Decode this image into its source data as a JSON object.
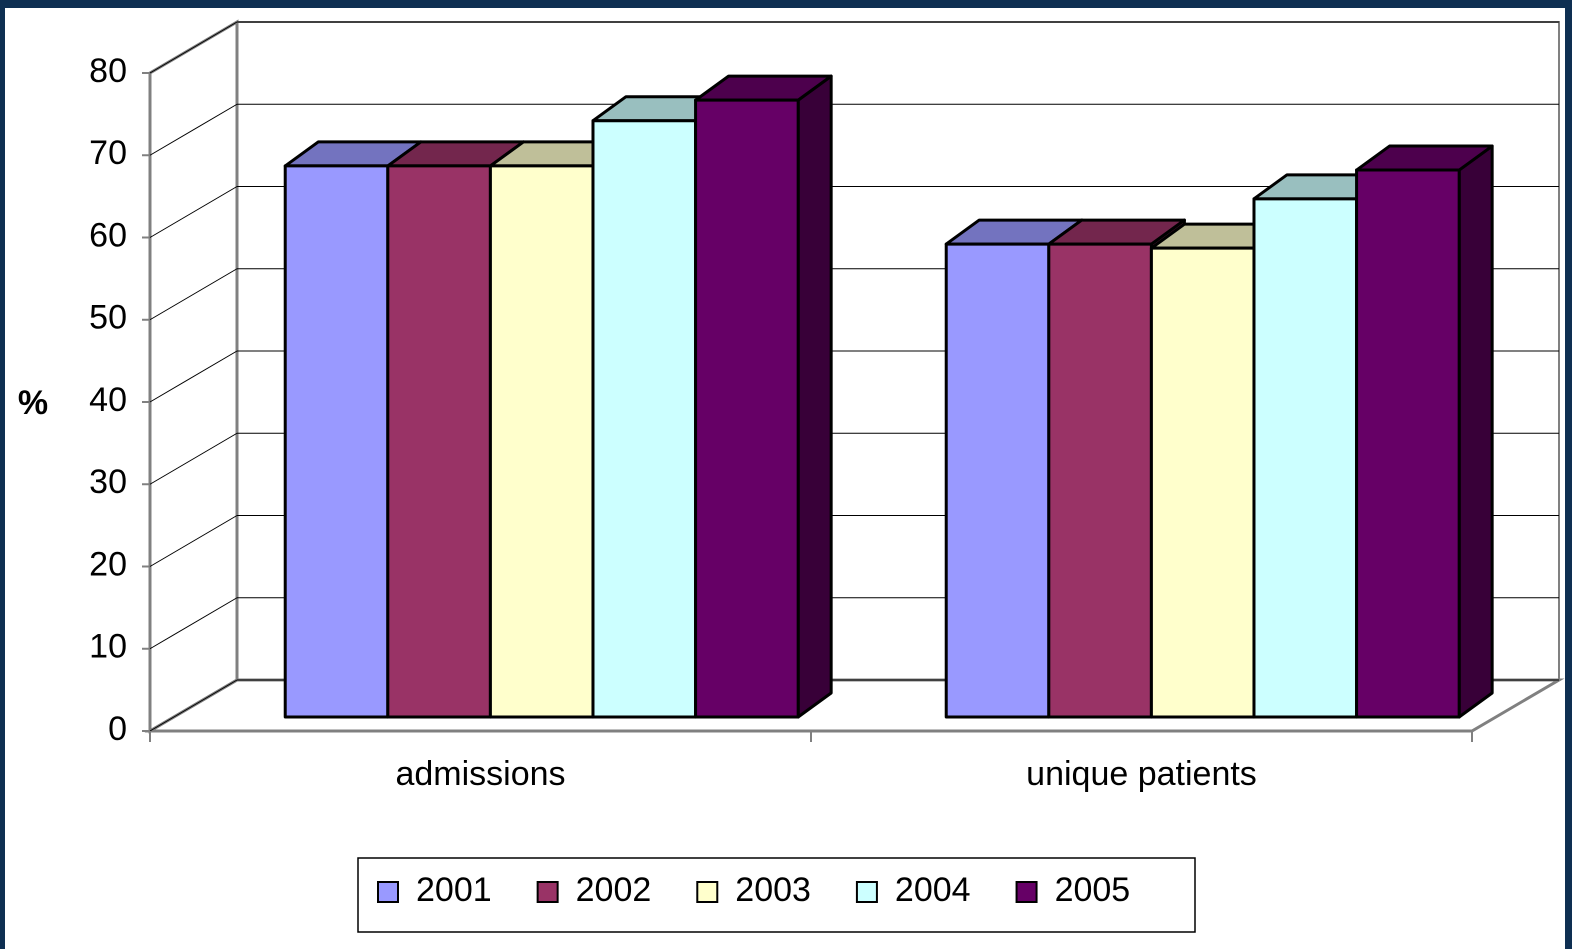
{
  "chart_data": {
    "type": "bar",
    "y_label": "%",
    "categories": [
      "admissions",
      "unique patients"
    ],
    "series": [
      {
        "name": "2001",
        "color": "#9999ff",
        "values": [
          67,
          57.5
        ]
      },
      {
        "name": "2002",
        "color": "#993366",
        "values": [
          67,
          57.5
        ]
      },
      {
        "name": "2003",
        "color": "#ffffcc",
        "values": [
          67,
          57
        ]
      },
      {
        "name": "2004",
        "color": "#ccffff",
        "values": [
          72.5,
          63
        ]
      },
      {
        "name": "2005",
        "color": "#660066",
        "values": [
          75,
          66.5
        ]
      }
    ],
    "ylim": [
      0,
      80
    ],
    "yticks": [
      0,
      10,
      20,
      30,
      40,
      50,
      60,
      70,
      80
    ],
    "grid": true,
    "legend": "bottom"
  }
}
